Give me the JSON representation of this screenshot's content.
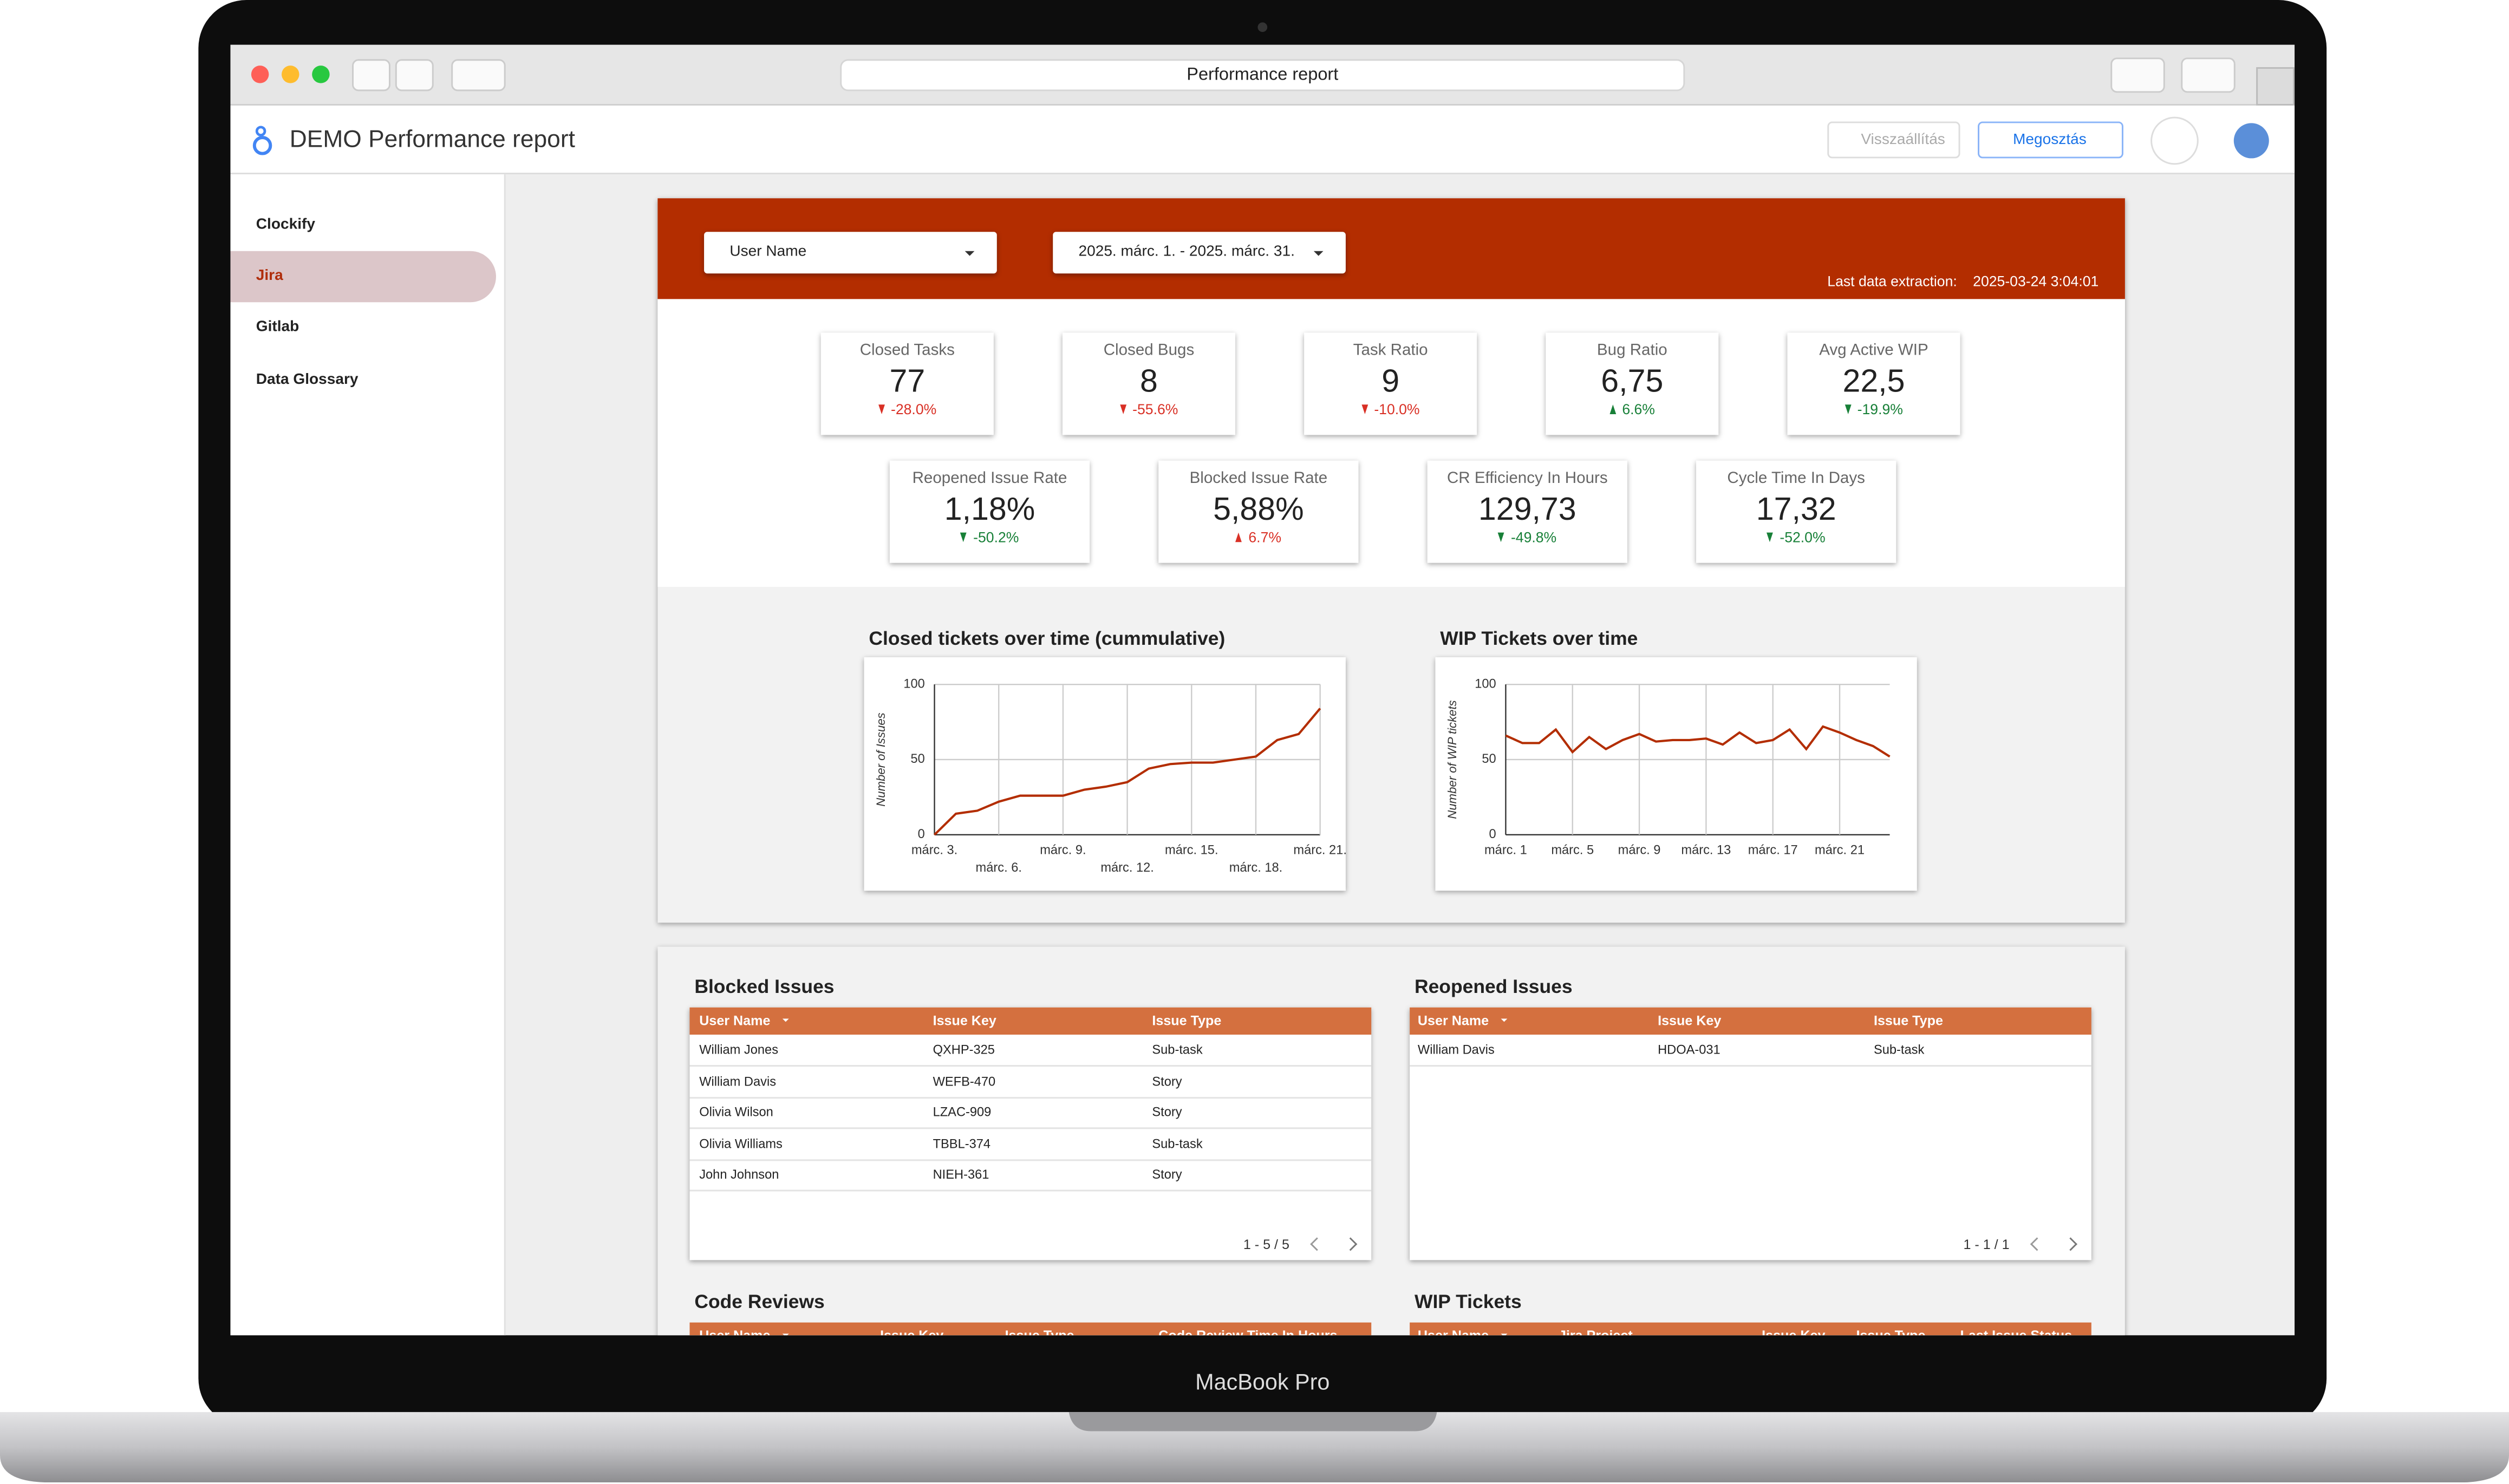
{
  "browser": {
    "tab_title": "Performance report"
  },
  "header": {
    "title": "DEMO Performance report",
    "reset_button": "Visszaállítás",
    "share_button": "Megosztás"
  },
  "sidebar": {
    "items": [
      "Clockify",
      "Jira",
      "Gitlab",
      "Data Glossary"
    ]
  },
  "filters": {
    "user": "User Name",
    "date_range": "2025. márc. 1. - 2025. márc. 31.",
    "last_extraction_label": "Last data extraction:",
    "last_extraction": "2025-03-24 3:04:01"
  },
  "kpis": [
    {
      "label": "Closed Tasks",
      "value": "77",
      "change": "-28.0%",
      "color": "#d93025"
    },
    {
      "label": "Closed Bugs",
      "value": "8",
      "change": "-55.6%",
      "color": "#d93025"
    },
    {
      "label": "Task Ratio",
      "value": "9",
      "change": "-10.0%",
      "color": "#d93025"
    },
    {
      "label": "Bug Ratio",
      "value": "6,75",
      "change": "6.6%",
      "color": "#188038"
    },
    {
      "label": "Avg Active WIP",
      "value": "22,5",
      "change": "-19.9%",
      "color": "#188038"
    },
    {
      "label": "Reopened Issue Rate",
      "value": "1,18%",
      "change": "-50.2%",
      "color": "#188038"
    },
    {
      "label": "Blocked Issue Rate",
      "value": "5,88%",
      "change": "6.7%",
      "color": "#d93025"
    },
    {
      "label": "CR Efficiency In Hours",
      "value": "129,73",
      "change": "-49.8%",
      "color": "#188038"
    },
    {
      "label": "Cycle Time In Days",
      "value": "17,32",
      "change": "-52.0%",
      "color": "#188038"
    }
  ],
  "chart_data": [
    {
      "type": "line",
      "title": "Closed tickets over time (cummulative)",
      "y_label": "Number of Issues",
      "categories": [
        "márc. 3.",
        null,
        null,
        "márc. 6.",
        null,
        null,
        "márc. 9.",
        null,
        null,
        "márc. 12.",
        null,
        null,
        "márc. 15.",
        null,
        null,
        "márc. 18.",
        null,
        null,
        "márc. 21."
      ],
      "values": [
        0,
        14,
        16,
        22,
        26,
        26,
        26,
        30,
        32,
        35,
        44,
        47,
        48,
        48,
        50,
        52,
        63,
        67,
        84
      ],
      "color": "#b32d00",
      "ylim": [
        0,
        100
      ],
      "yticks": [
        0,
        50,
        100
      ],
      "grid": true,
      "staggered_labels": true
    },
    {
      "type": "line",
      "title": "WIP Tickets over time",
      "y_label": "Number of WIP tickets",
      "categories": [
        "márc. 1",
        null,
        null,
        null,
        "márc. 5",
        null,
        null,
        null,
        "márc. 9",
        null,
        null,
        null,
        "márc. 13",
        null,
        null,
        null,
        "márc. 17",
        null,
        null,
        null,
        "márc. 21",
        null,
        null,
        null
      ],
      "values": [
        66,
        61,
        61,
        70,
        55,
        65,
        57,
        63,
        67,
        62,
        63,
        63,
        64,
        60,
        68,
        61,
        63,
        70,
        57,
        72,
        68,
        63,
        59,
        52
      ],
      "color": "#b32d00",
      "ylim": [
        0,
        100
      ],
      "yticks": [
        0,
        50,
        100
      ],
      "grid": true,
      "staggered_labels": false
    }
  ],
  "tables": [
    {
      "title": "Blocked Issues",
      "columns": [
        "User Name",
        "Issue Key",
        "Issue Type"
      ],
      "rows": [
        [
          "William Jones",
          "QXHP-325",
          "Sub-task"
        ],
        [
          "William Davis",
          "WEFB-470",
          "Story"
        ],
        [
          "Olivia Wilson",
          "LZAC-909",
          "Story"
        ],
        [
          "Olivia Williams",
          "TBBL-374",
          "Sub-task"
        ],
        [
          "John Johnson",
          "NIEH-361",
          "Story"
        ]
      ],
      "pagination": "1 - 5 / 5"
    },
    {
      "title": "Reopened Issues",
      "columns": [
        "User Name",
        "Issue Key",
        "Issue Type"
      ],
      "rows": [
        [
          "William Davis",
          "HDOA-031",
          "Sub-task"
        ]
      ],
      "pagination": "1 - 1 / 1"
    },
    {
      "title": "Code Reviews",
      "columns": [
        "User Name",
        "Issue Key",
        "Issue Type",
        "Code Review Time In Hours"
      ],
      "rows": []
    },
    {
      "title": "WIP Tickets",
      "columns": [
        "User Name",
        "Jira Project",
        "Issue Key",
        "Issue Type",
        "Last Issue Status"
      ],
      "rows": []
    }
  ],
  "device": {
    "label": "MacBook Pro"
  }
}
